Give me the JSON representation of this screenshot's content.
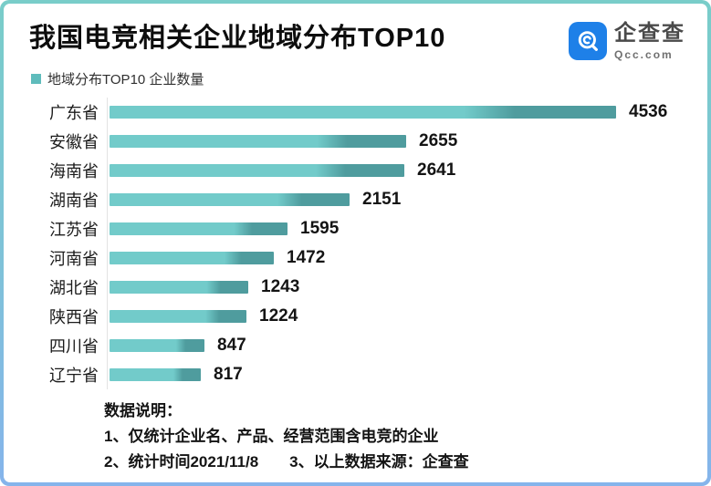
{
  "header": {
    "title": "我国电竞相关企业地域分布TOP10",
    "logo": {
      "name": "企查查",
      "domain": "Qcc.com"
    }
  },
  "legend": {
    "label": "地域分布TOP10 企业数量"
  },
  "chart_data": {
    "type": "bar",
    "orientation": "horizontal",
    "title": "我国电竞相关企业地域分布TOP10",
    "legend_entries": [
      "地域分布TOP10 企业数量"
    ],
    "categories": [
      "广东省",
      "安徽省",
      "海南省",
      "湖南省",
      "江苏省",
      "河南省",
      "湖北省",
      "陕西省",
      "四川省",
      "辽宁省"
    ],
    "values": [
      4536,
      2655,
      2641,
      2151,
      1595,
      1472,
      1243,
      1224,
      847,
      817
    ],
    "value_labels": [
      "4536",
      "2655",
      "2641",
      "2151",
      "1595",
      "1472",
      "1243",
      "1224",
      "847",
      "817"
    ],
    "xlim": [
      0,
      4800
    ],
    "grid": false,
    "legend_position": "top-left"
  },
  "footer": {
    "heading": "数据说明：",
    "note1": "1、仅统计企业名、产品、经营范围含电竞的企业",
    "note2": "2、统计时间2021/11/8",
    "note3": "3、以上数据来源：企查查"
  },
  "colors": {
    "bar_light": "#72cbca",
    "bar_dark": "#4f9c9e",
    "legend_swatch": "#5fbcbc",
    "logo_blue": "#1e80e8",
    "border_top": "#79cdc9",
    "border_bottom": "#85b4eb",
    "title_text": "#0d0d0d"
  }
}
